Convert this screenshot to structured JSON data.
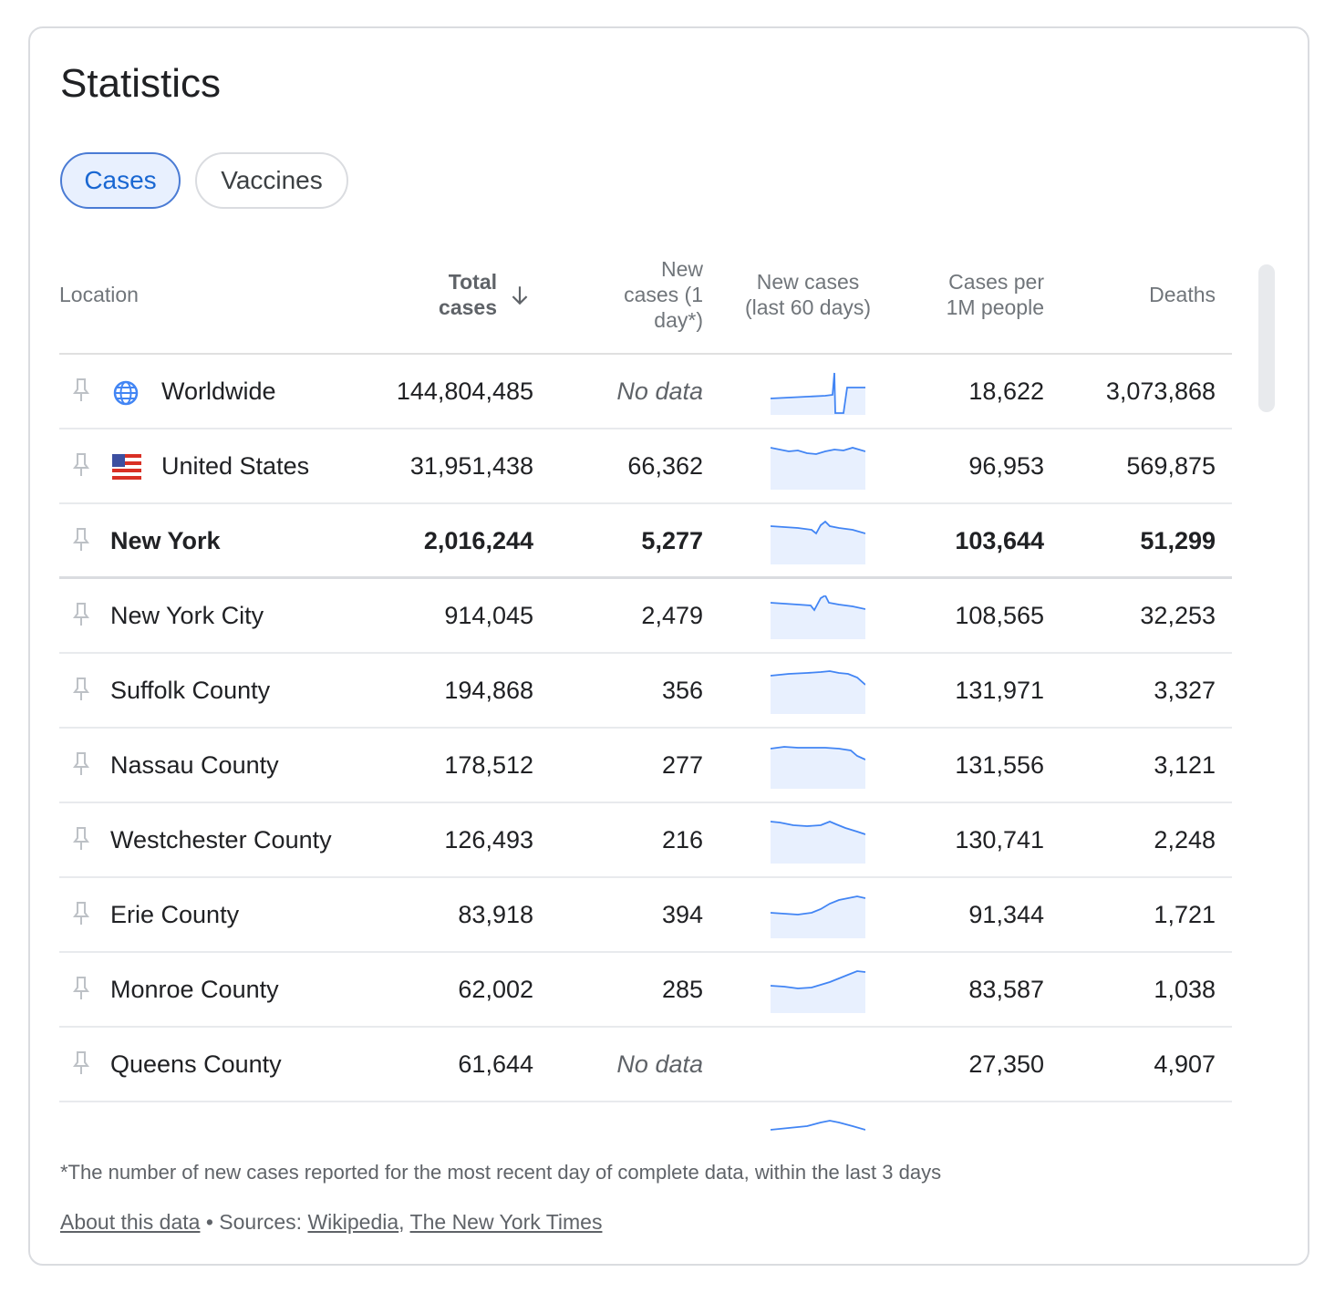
{
  "title": "Statistics",
  "tabs": [
    {
      "label": "Cases",
      "active": true
    },
    {
      "label": "Vaccines",
      "active": false
    }
  ],
  "columns": {
    "location": "Location",
    "total_cases_l1": "Total",
    "total_cases_l2": "cases",
    "new_cases_l1": "New",
    "new_cases_l2": "cases (1",
    "new_cases_l3": "day*)",
    "new60_l1": "New cases",
    "new60_l2": "(last 60 days)",
    "per1m_l1": "Cases per",
    "per1m_l2": "1M people",
    "deaths": "Deaths"
  },
  "rows": [
    {
      "location": "Worldwide",
      "total": "144,804,485",
      "new": "No data",
      "per1m": "18,622",
      "deaths": "3,073,868",
      "icon": "globe-icon"
    },
    {
      "location": "United States",
      "total": "31,951,438",
      "new": "66,362",
      "per1m": "96,953",
      "deaths": "569,875",
      "icon": "us-flag-icon"
    },
    {
      "location": "New York",
      "total": "2,016,244",
      "new": "5,277",
      "per1m": "103,644",
      "deaths": "51,299"
    },
    {
      "location": "New York City",
      "total": "914,045",
      "new": "2,479",
      "per1m": "108,565",
      "deaths": "32,253"
    },
    {
      "location": "Suffolk County",
      "total": "194,868",
      "new": "356",
      "per1m": "131,971",
      "deaths": "3,327"
    },
    {
      "location": "Nassau County",
      "total": "178,512",
      "new": "277",
      "per1m": "131,556",
      "deaths": "3,121"
    },
    {
      "location": "Westchester County",
      "total": "126,493",
      "new": "216",
      "per1m": "130,741",
      "deaths": "2,248"
    },
    {
      "location": "Erie County",
      "total": "83,918",
      "new": "394",
      "per1m": "91,344",
      "deaths": "1,721"
    },
    {
      "location": "Monroe County",
      "total": "62,002",
      "new": "285",
      "per1m": "83,587",
      "deaths": "1,038"
    },
    {
      "location": "Queens County",
      "total": "61,644",
      "new": "No data",
      "per1m": "27,350",
      "deaths": "4,907"
    }
  ],
  "footnote": "*The number of new cases reported for the most recent day of complete data, within the last 3 days",
  "sources": {
    "about": "About this data",
    "bullet": "•",
    "label": "Sources:",
    "wikipedia": "Wikipedia",
    "comma": ",",
    "nyt": "The New York Times"
  },
  "colors": {
    "accent": "#1967d2",
    "spark_line": "#4285f4",
    "spark_fill": "#e8f0fe"
  }
}
